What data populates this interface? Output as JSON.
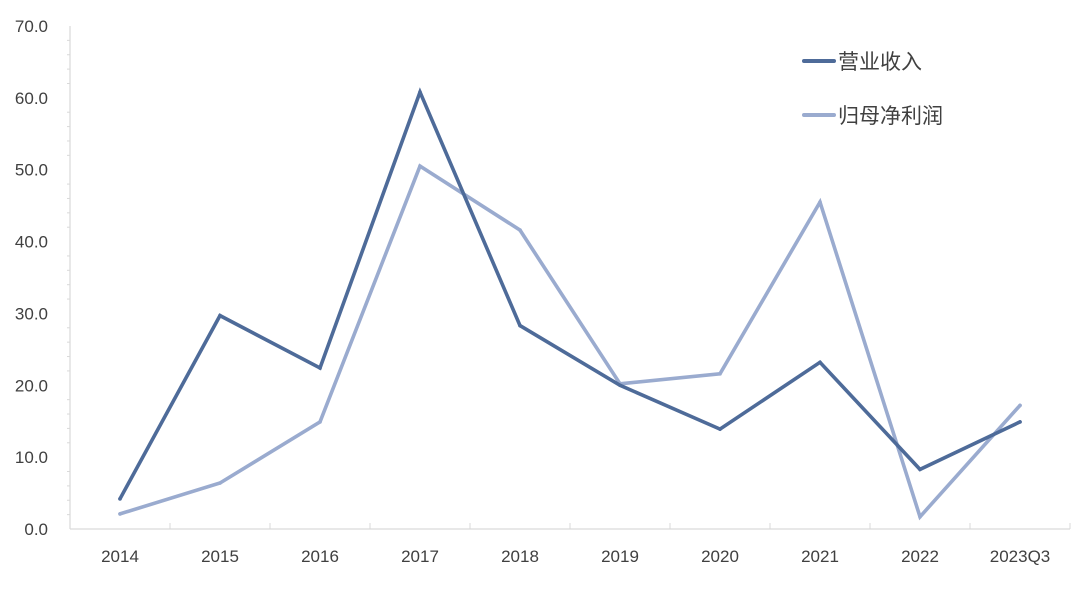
{
  "chart_data": {
    "type": "line",
    "title": "",
    "xlabel": "",
    "ylabel": "",
    "categories": [
      "2014",
      "2015",
      "2016",
      "2017",
      "2018",
      "2019",
      "2020",
      "2021",
      "2022",
      "2023Q3"
    ],
    "ylim": [
      0,
      70
    ],
    "yticks": [
      "0.0",
      "10.0",
      "20.0",
      "30.0",
      "40.0",
      "50.0",
      "60.0",
      "70.0"
    ],
    "grid": false,
    "legend_position": "top-right",
    "series": [
      {
        "name": "营业收入",
        "color": "#4e6b99",
        "values": [
          4.2,
          29.7,
          22.4,
          60.8,
          28.3,
          20.0,
          13.9,
          23.2,
          8.3,
          14.9
        ]
      },
      {
        "name": "归母净利润",
        "color": "#9aabcf",
        "values": [
          2.1,
          6.4,
          14.9,
          50.5,
          41.6,
          20.2,
          21.6,
          45.5,
          1.7,
          17.2
        ]
      }
    ]
  }
}
